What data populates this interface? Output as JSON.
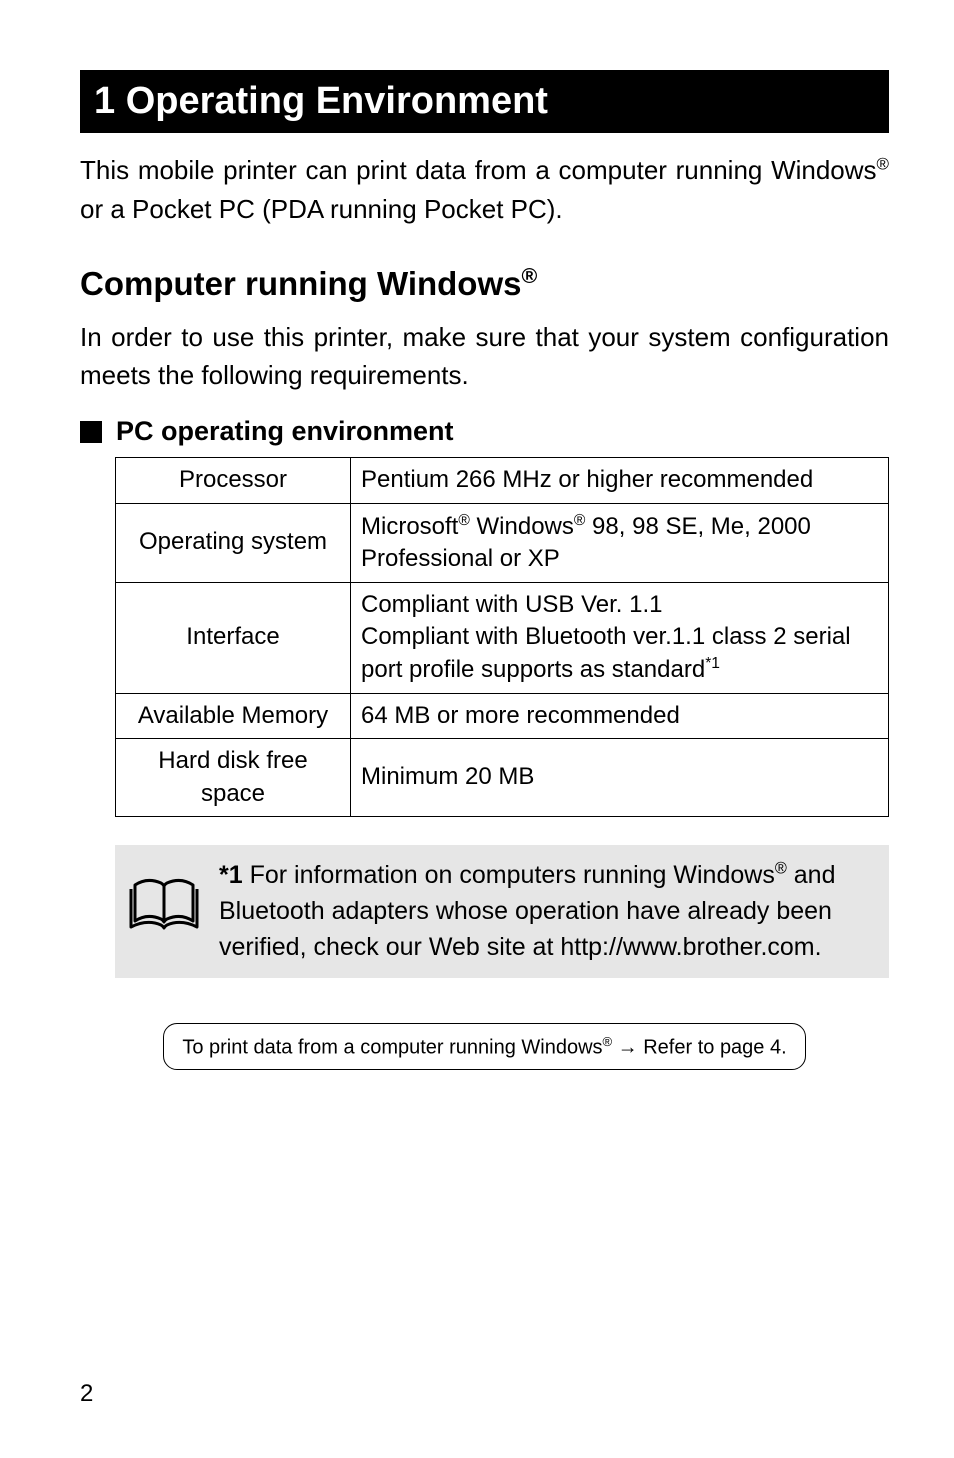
{
  "chapter": {
    "title": "1  Operating Environment"
  },
  "intro": "This mobile printer can print data from a computer running Windows",
  "intro_reg": "®",
  "intro_2": " or a Pocket PC (PDA running Pocket PC).",
  "section": {
    "heading_pre": "Computer running Windows",
    "heading_reg": "®"
  },
  "section_desc": "In order to use this printer, make sure that your system configuration meets the following requirements.",
  "subsection_label": "PC operating environment",
  "table": {
    "rows": [
      {
        "label": "Processor",
        "value": "Pentium 266 MHz or higher recommended"
      },
      {
        "label": "Operating system",
        "value_html": "Microsoft<sup>®</sup> Windows<sup>®</sup> 98, 98 SE, Me, 2000 Professional or XP"
      },
      {
        "label": "Interface",
        "value_html": "Compliant with USB Ver. 1.1<br>Compliant with Bluetooth ver.1.1 class 2 serial port profile supports as standard<sup>*1</sup>"
      },
      {
        "label": "Available Memory",
        "value": "64 MB or more recommended"
      },
      {
        "label": "Hard disk free space",
        "value": "Minimum 20 MB"
      }
    ]
  },
  "note": {
    "bold": "*1",
    "text_1": " For information on computers running Windows",
    "reg": "®",
    "text_2": " and Bluetooth adapters whose operation have already been verified, check our Web site at http://www.brother.com."
  },
  "ref": {
    "text_1": "To print data from a computer running Windows",
    "reg": "®",
    "text_2": " → Refer to page 4."
  },
  "page_number": "2"
}
